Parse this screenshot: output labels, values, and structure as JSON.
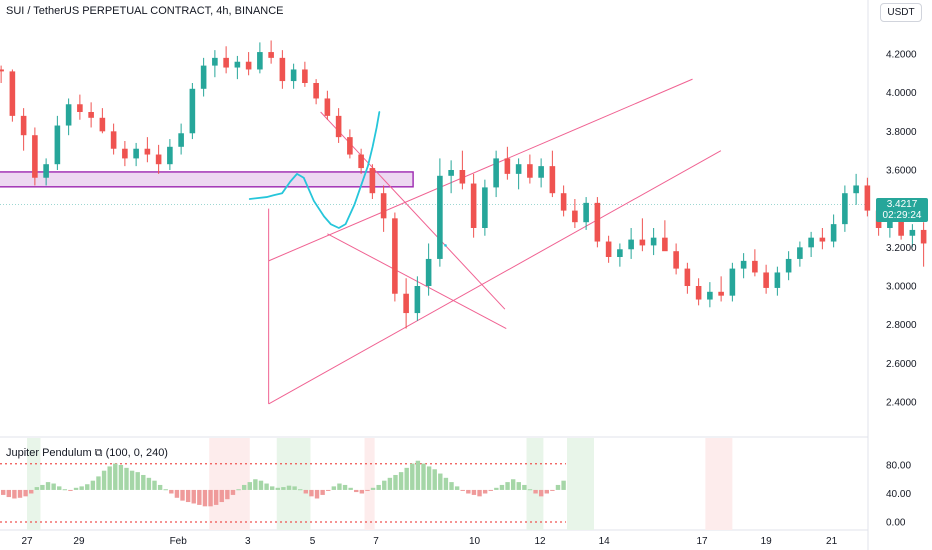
{
  "header": {
    "title": "SUI / TetherUS PERPETUAL CONTRACT, 4h, BINANCE",
    "currency": "USDT"
  },
  "last_price": {
    "price": "3.4217",
    "countdown": "02:29:24",
    "value": 3.4217,
    "color": "#26a69a"
  },
  "colors": {
    "up": "#26a69a",
    "down": "#ef5350",
    "drawing": "#f06292",
    "zone_border": "#9c27b0",
    "zone_fill": "#e1bee7",
    "projection": "#26c6da"
  },
  "chart_data": [
    {
      "type": "candlestick",
      "title": "SUI / TetherUS PERPETUAL CONTRACT, 4h, BINANCE",
      "x_ticks": [
        "27",
        "29",
        "Feb",
        "3",
        "5",
        "7",
        "10",
        "12",
        "14",
        "17",
        "19",
        "21"
      ],
      "y_ticks": [
        "4.2000",
        "4.0000",
        "3.8000",
        "3.6000",
        "3.4000",
        "3.2000",
        "3.0000",
        "2.8000",
        "2.6000",
        "2.4000"
      ],
      "ylim": [
        2.28,
        4.35
      ],
      "bars_per_day": 6,
      "ohlc": [
        [
          4.14,
          4.16,
          4.1,
          4.12
        ],
        [
          4.12,
          4.14,
          4.05,
          4.11
        ],
        [
          4.11,
          4.12,
          3.85,
          3.88
        ],
        [
          3.88,
          3.92,
          3.7,
          3.78
        ],
        [
          3.78,
          3.82,
          3.52,
          3.56
        ],
        [
          3.56,
          3.66,
          3.52,
          3.63
        ],
        [
          3.63,
          3.88,
          3.6,
          3.83
        ],
        [
          3.83,
          3.97,
          3.78,
          3.94
        ],
        [
          3.94,
          3.99,
          3.86,
          3.9
        ],
        [
          3.9,
          3.95,
          3.82,
          3.87
        ],
        [
          3.87,
          3.92,
          3.79,
          3.8
        ],
        [
          3.8,
          3.84,
          3.68,
          3.71
        ],
        [
          3.71,
          3.75,
          3.62,
          3.66
        ],
        [
          3.66,
          3.74,
          3.62,
          3.71
        ],
        [
          3.71,
          3.77,
          3.64,
          3.68
        ],
        [
          3.68,
          3.73,
          3.58,
          3.63
        ],
        [
          3.63,
          3.76,
          3.6,
          3.72
        ],
        [
          3.72,
          3.84,
          3.68,
          3.79
        ],
        [
          3.79,
          4.05,
          3.76,
          4.02
        ],
        [
          4.02,
          4.18,
          3.98,
          4.14
        ],
        [
          4.14,
          4.22,
          4.08,
          4.18
        ],
        [
          4.18,
          4.24,
          4.1,
          4.13
        ],
        [
          4.13,
          4.19,
          4.07,
          4.16
        ],
        [
          4.16,
          4.21,
          4.09,
          4.12
        ],
        [
          4.12,
          4.26,
          4.1,
          4.21
        ],
        [
          4.21,
          4.27,
          4.15,
          4.18
        ],
        [
          4.18,
          4.22,
          4.02,
          4.06
        ],
        [
          4.06,
          4.15,
          4.02,
          4.12
        ],
        [
          4.12,
          4.16,
          4.03,
          4.05
        ],
        [
          4.05,
          4.07,
          3.94,
          3.97
        ],
        [
          3.97,
          4.01,
          3.86,
          3.88
        ],
        [
          3.88,
          3.92,
          3.74,
          3.77
        ],
        [
          3.77,
          3.81,
          3.66,
          3.68
        ],
        [
          3.68,
          3.71,
          3.58,
          3.61
        ],
        [
          3.61,
          3.63,
          3.45,
          3.48
        ],
        [
          3.48,
          3.52,
          3.28,
          3.35
        ],
        [
          3.35,
          3.38,
          2.92,
          2.96
        ],
        [
          2.96,
          3.04,
          2.78,
          2.86
        ],
        [
          2.86,
          3.05,
          2.82,
          3.0
        ],
        [
          3.0,
          3.22,
          2.95,
          3.14
        ],
        [
          3.14,
          3.66,
          3.1,
          3.57
        ],
        [
          3.57,
          3.65,
          3.48,
          3.6
        ],
        [
          3.6,
          3.7,
          3.5,
          3.53
        ],
        [
          3.53,
          3.58,
          3.25,
          3.3
        ],
        [
          3.3,
          3.55,
          3.26,
          3.51
        ],
        [
          3.51,
          3.7,
          3.46,
          3.66
        ],
        [
          3.66,
          3.72,
          3.55,
          3.58
        ],
        [
          3.58,
          3.66,
          3.5,
          3.63
        ],
        [
          3.63,
          3.68,
          3.53,
          3.56
        ],
        [
          3.56,
          3.66,
          3.51,
          3.62
        ],
        [
          3.62,
          3.7,
          3.46,
          3.48
        ],
        [
          3.48,
          3.52,
          3.36,
          3.39
        ],
        [
          3.39,
          3.45,
          3.3,
          3.33
        ],
        [
          3.33,
          3.46,
          3.29,
          3.43
        ],
        [
          3.43,
          3.46,
          3.2,
          3.23
        ],
        [
          3.23,
          3.26,
          3.12,
          3.15
        ],
        [
          3.15,
          3.22,
          3.1,
          3.19
        ],
        [
          3.19,
          3.3,
          3.14,
          3.24
        ],
        [
          3.24,
          3.35,
          3.18,
          3.21
        ],
        [
          3.21,
          3.3,
          3.16,
          3.25
        ],
        [
          3.25,
          3.34,
          3.2,
          3.18
        ],
        [
          3.18,
          3.22,
          3.06,
          3.09
        ],
        [
          3.09,
          3.12,
          2.96,
          3.0
        ],
        [
          3.0,
          3.04,
          2.9,
          2.93
        ],
        [
          2.93,
          3.02,
          2.89,
          2.97
        ],
        [
          2.97,
          3.05,
          2.92,
          2.95
        ],
        [
          2.95,
          3.12,
          2.92,
          3.09
        ],
        [
          3.09,
          3.17,
          3.04,
          3.13
        ],
        [
          3.13,
          3.19,
          3.05,
          3.07
        ],
        [
          3.07,
          3.11,
          2.96,
          2.99
        ],
        [
          2.99,
          3.1,
          2.95,
          3.07
        ],
        [
          3.07,
          3.18,
          3.03,
          3.14
        ],
        [
          3.14,
          3.23,
          3.1,
          3.2
        ],
        [
          3.2,
          3.28,
          3.15,
          3.25
        ],
        [
          3.25,
          3.3,
          3.19,
          3.23
        ],
        [
          3.23,
          3.37,
          3.2,
          3.32
        ],
        [
          3.32,
          3.52,
          3.28,
          3.48
        ],
        [
          3.48,
          3.58,
          3.42,
          3.52
        ],
        [
          3.52,
          3.56,
          3.36,
          3.39
        ],
        [
          3.39,
          3.44,
          3.26,
          3.3
        ],
        [
          3.3,
          3.38,
          3.25,
          3.34
        ],
        [
          3.34,
          3.38,
          3.24,
          3.26
        ],
        [
          3.26,
          3.32,
          3.2,
          3.29
        ],
        [
          3.29,
          3.33,
          3.1,
          3.22
        ],
        [
          3.22,
          3.45,
          3.18,
          3.42
        ]
      ],
      "projection": [
        [
          3.3,
          3.45
        ],
        [
          3.55,
          3.46
        ],
        [
          3.66,
          3.47
        ],
        [
          3.78,
          3.48
        ],
        [
          3.9,
          3.54
        ],
        [
          4.0,
          3.58
        ],
        [
          4.1,
          3.56
        ],
        [
          4.25,
          3.44
        ],
        [
          4.4,
          3.36
        ],
        [
          4.5,
          3.32
        ],
        [
          4.62,
          3.3
        ],
        [
          4.72,
          3.32
        ],
        [
          4.85,
          3.42
        ],
        [
          4.95,
          3.52
        ],
        [
          5.05,
          3.62
        ],
        [
          5.12,
          3.72
        ],
        [
          5.18,
          3.82
        ],
        [
          5.22,
          3.9
        ]
      ],
      "stray_dot": [
        6.2,
        3.21
      ],
      "zone": {
        "x0": -0.52,
        "x1": 5.72,
        "y0": 3.513,
        "y1": 3.59
      },
      "trendlines": [
        {
          "x0": 4.35,
          "y0": 3.9,
          "x1": 7.08,
          "y1": 2.88
        },
        {
          "x0": 4.45,
          "y0": 3.27,
          "x1": 7.1,
          "y1": 2.78
        },
        {
          "x0": 3.58,
          "y0": 3.13,
          "x1": 9.86,
          "y1": 4.07
        },
        {
          "x0": 3.58,
          "y0": 2.39,
          "x1": 10.28,
          "y1": 3.7
        }
      ],
      "vline": {
        "x": 3.58,
        "y0": 2.39,
        "y1": 3.4
      }
    },
    {
      "type": "bar",
      "title": "Jupiter Pendulum",
      "params": "(100, 0, 240)",
      "y_ticks": [
        "80.00",
        "40.00",
        "0.00"
      ],
      "ylim": [
        -4,
        104
      ],
      "upper_level": 100,
      "lower_level": 0,
      "center": 45,
      "values": [
        38,
        35,
        33,
        34,
        36,
        40,
        49,
        52,
        56,
        54,
        50,
        46,
        44,
        48,
        50,
        53,
        58,
        64,
        72,
        78,
        82,
        80,
        76,
        72,
        70,
        66,
        62,
        58,
        52,
        46,
        40,
        34,
        30,
        28,
        26,
        24,
        22,
        22,
        24,
        28,
        32,
        38,
        46,
        52,
        56,
        60,
        58,
        54,
        50,
        48,
        49,
        51,
        50,
        46,
        40,
        36,
        33,
        38,
        44,
        50,
        54,
        52,
        48,
        42,
        40,
        44,
        48,
        52,
        58,
        62,
        66,
        70,
        76,
        82,
        86,
        82,
        78,
        74,
        68,
        62,
        56,
        50,
        44,
        40,
        38,
        36,
        40,
        44,
        48,
        52,
        56,
        60,
        56,
        52,
        46,
        40,
        36,
        40,
        44,
        52,
        58
      ],
      "highlights": [
        {
          "start": 0.0,
          "end": 0.2,
          "color": "#e8f5e9"
        },
        {
          "start": 2.7,
          "end": 3.3,
          "color": "#fdecec"
        },
        {
          "start": 3.7,
          "end": 4.2,
          "color": "#e8f5e9"
        },
        {
          "start": 5.0,
          "end": 5.15,
          "color": "#fdecec"
        },
        {
          "start": 7.4,
          "end": 7.65,
          "color": "#e8f5e9"
        },
        {
          "start": 8.0,
          "end": 8.4,
          "color": "#e8f5e9"
        },
        {
          "start": 10.05,
          "end": 10.45,
          "color": "#fdecec"
        }
      ]
    }
  ]
}
